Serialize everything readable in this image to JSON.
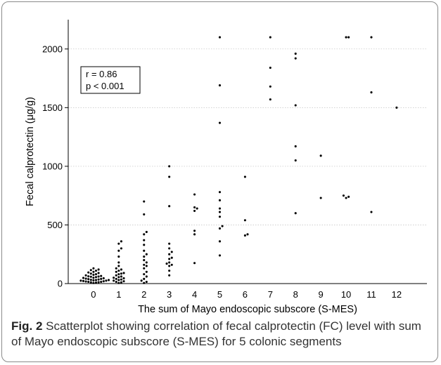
{
  "chart_data": {
    "type": "scatter",
    "xlabel": "The sum of Mayo endoscopic subscore (S-MES)",
    "ylabel": "Fecal calprotectin (μg/g)",
    "xlim": [
      -1,
      13.2
    ],
    "ylim": [
      0,
      2250
    ],
    "x_ticks": [
      "0",
      "1",
      "2",
      "3",
      "4",
      "5",
      "6",
      "7",
      "8",
      "9",
      "10",
      "11",
      "12"
    ],
    "y_ticks": [
      "0",
      "500",
      "1000",
      "1500",
      "2000"
    ],
    "grid": "horizontal-dotted",
    "annotation": {
      "line1": "r = 0.86",
      "line2": "p < 0.001"
    },
    "series": [
      {
        "x": 0,
        "values": [
          5,
          8,
          10,
          12,
          15,
          15,
          18,
          20,
          22,
          25,
          25,
          28,
          30,
          30,
          32,
          35,
          38,
          40,
          42,
          45,
          48,
          50,
          55,
          58,
          60,
          62,
          65,
          70,
          75,
          80,
          85,
          90,
          95,
          100,
          110,
          115,
          120,
          130
        ]
      },
      {
        "x": 1,
        "values": [
          5,
          10,
          15,
          20,
          25,
          30,
          35,
          40,
          45,
          50,
          55,
          60,
          70,
          80,
          85,
          90,
          100,
          110,
          120,
          130,
          150,
          180,
          230,
          280,
          300,
          340,
          360
        ]
      },
      {
        "x": 2,
        "values": [
          5,
          15,
          25,
          40,
          60,
          80,
          100,
          130,
          150,
          160,
          180,
          200,
          230,
          250,
          280,
          330,
          370,
          420,
          440,
          590,
          700
        ]
      },
      {
        "x": 3,
        "values": [
          70,
          110,
          150,
          160,
          170,
          180,
          210,
          220,
          250,
          270,
          300,
          340,
          660,
          910,
          1000
        ]
      },
      {
        "x": 4,
        "values": [
          175,
          420,
          450,
          620,
          640,
          650,
          760
        ]
      },
      {
        "x": 5,
        "values": [
          240,
          360,
          470,
          490,
          570,
          610,
          640,
          710,
          780,
          1370,
          1690,
          2100
        ]
      },
      {
        "x": 6,
        "values": [
          410,
          420,
          540,
          910
        ]
      },
      {
        "x": 7,
        "values": [
          1570,
          1680,
          1840,
          2100
        ]
      },
      {
        "x": 8,
        "values": [
          600,
          1050,
          1170,
          1520,
          1920,
          1960
        ]
      },
      {
        "x": 9,
        "values": [
          730,
          1090
        ]
      },
      {
        "x": 10,
        "values": [
          730,
          740,
          750,
          2100,
          2100
        ]
      },
      {
        "x": 11,
        "values": [
          610,
          1630,
          2100
        ]
      },
      {
        "x": 12,
        "values": [
          1500
        ]
      }
    ]
  },
  "caption": {
    "label": "Fig. 2",
    "text": " Scatterplot showing correlation of fecal calprotectin (FC) level with sum of Mayo endoscopic subscore (S-MES) for 5 colonic segments"
  }
}
